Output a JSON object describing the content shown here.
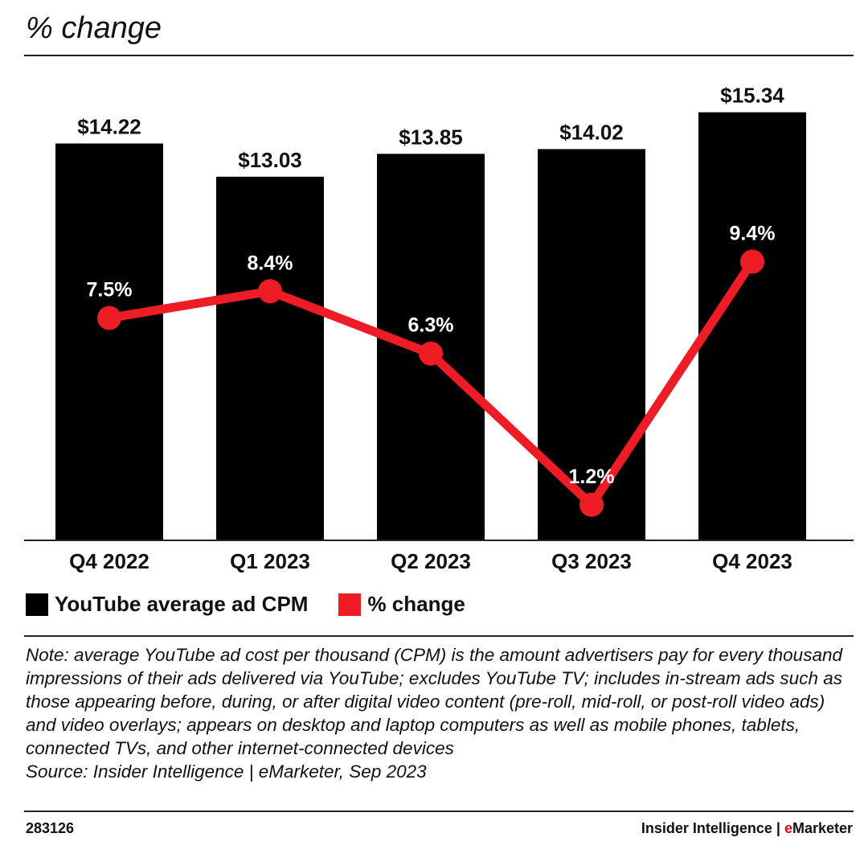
{
  "subtitle": "% change",
  "chart_data": {
    "type": "bar+line",
    "categories": [
      "Q4 2022",
      "Q1 2023",
      "Q2 2023",
      "Q3 2023",
      "Q4 2023"
    ],
    "series": [
      {
        "name": "YouTube average ad CPM",
        "type": "bar",
        "color": "#000000",
        "values": [
          14.22,
          13.03,
          13.85,
          14.02,
          15.34
        ],
        "labels": [
          "$14.22",
          "$13.03",
          "$13.85",
          "$14.02",
          "$15.34"
        ]
      },
      {
        "name": "% change",
        "type": "line",
        "color": "#ee1c25",
        "values": [
          7.5,
          8.4,
          6.3,
          1.2,
          9.4
        ],
        "labels": [
          "7.5%",
          "8.4%",
          "6.3%",
          "1.2%",
          "9.4%"
        ]
      }
    ],
    "bar_ylim": [
      0,
      17
    ],
    "line_ylim": [
      0,
      16
    ]
  },
  "legend": [
    {
      "label": "YouTube average ad CPM",
      "color": "#000000"
    },
    {
      "label": "% change",
      "color": "#ee1c25"
    }
  ],
  "note": "Note: average YouTube ad cost per thousand (CPM) is the amount advertisers pay for every thousand impressions of their ads delivered via YouTube; excludes YouTube TV; includes in-stream ads such as those appearing before, during, or after digital video content (pre-roll, mid-roll, or post-roll video ads) and video overlays; appears on desktop and laptop computers as well as mobile phones, tablets, connected TVs, and other internet-connected devices",
  "source": "Source: Insider Intelligence | eMarketer, Sep 2023",
  "footer": {
    "chart_id": "283126",
    "brand_main": "Insider Intelligence | ",
    "brand_e": "e",
    "brand_rest": "Marketer"
  }
}
